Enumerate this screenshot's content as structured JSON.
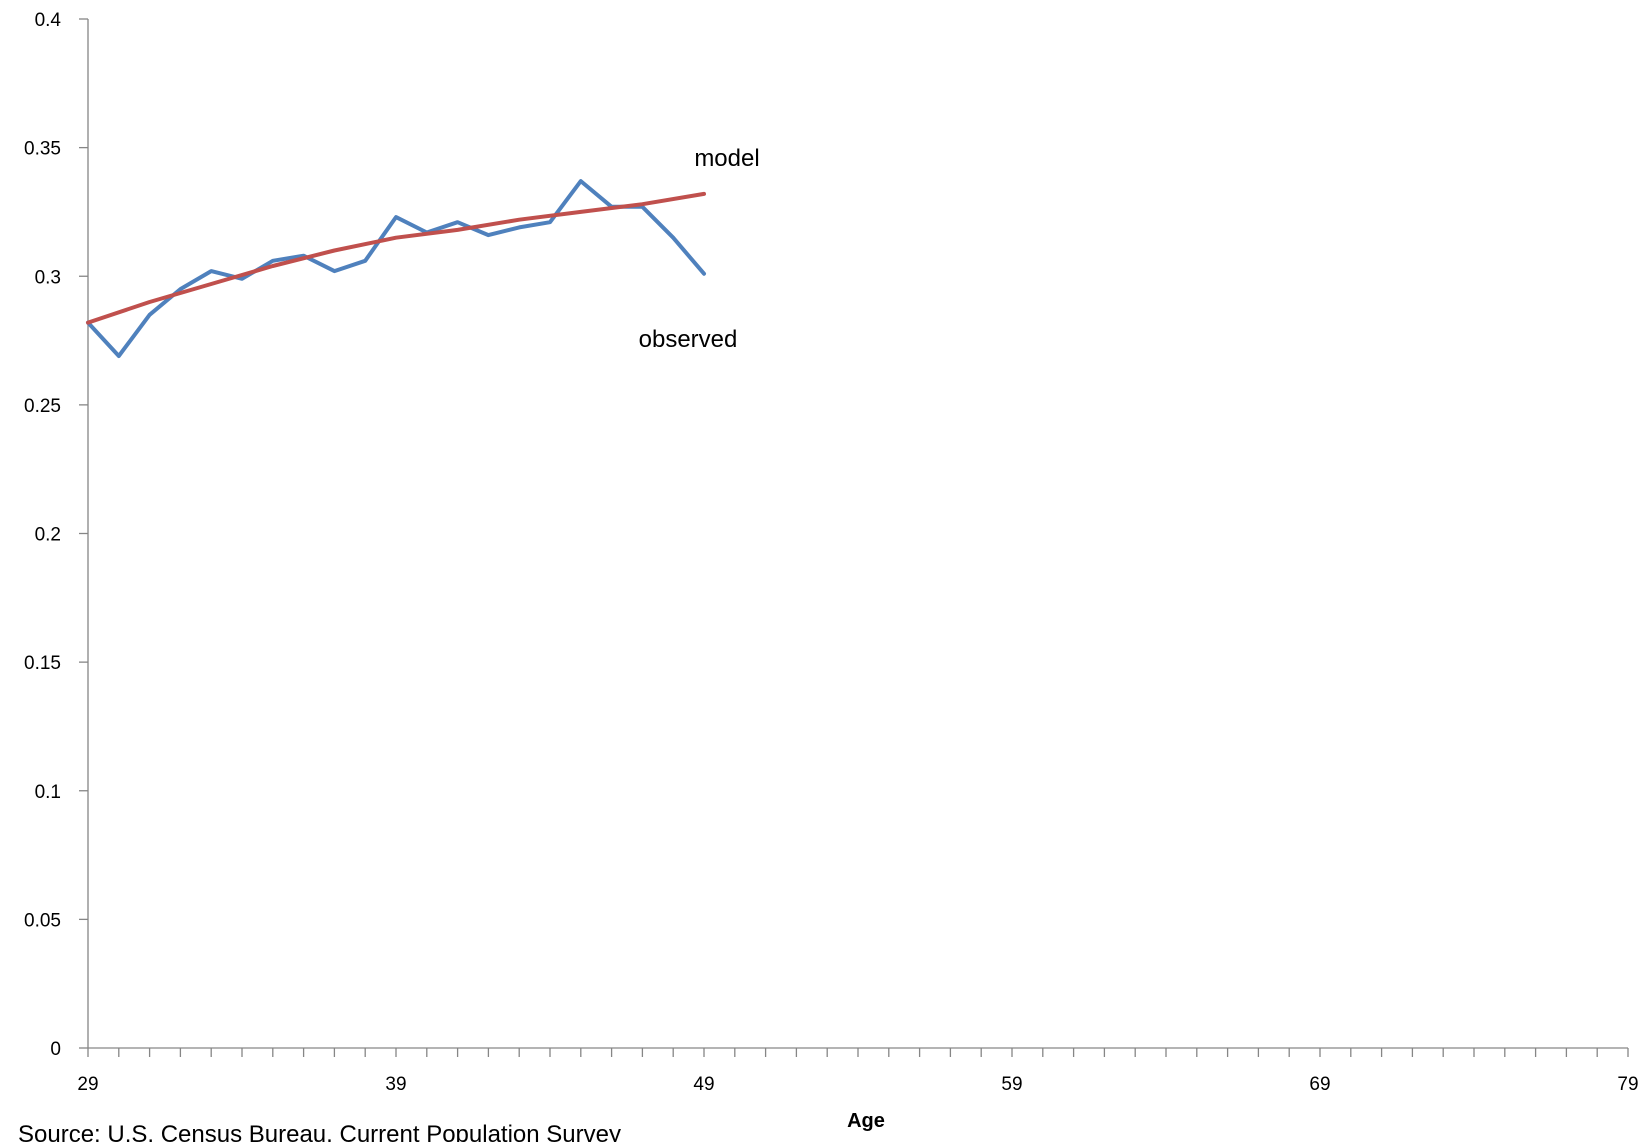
{
  "chart_data": {
    "type": "line",
    "xlabel": "Age",
    "xlim": [
      29,
      79
    ],
    "ylim": [
      0,
      0.4
    ],
    "x_tick_values": [
      29,
      39,
      49,
      59,
      69,
      79
    ],
    "x_tick_labels": [
      "29",
      "39",
      "49",
      "59",
      "69",
      "79"
    ],
    "y_tick_values": [
      0,
      0.05,
      0.1,
      0.15,
      0.2,
      0.25,
      0.3,
      0.35,
      0.4
    ],
    "y_tick_labels": [
      "0",
      "0.05",
      "0.1",
      "0.15",
      "0.2",
      "0.25",
      "0.3",
      "0.35",
      "0.4"
    ],
    "grid": false,
    "legend": "none",
    "series": [
      {
        "name": "observed",
        "color": "#4F81BD",
        "x": [
          29,
          30,
          31,
          32,
          33,
          34,
          35,
          36,
          37,
          38,
          39,
          40,
          41,
          42,
          43,
          44,
          45,
          46,
          47,
          48,
          49
        ],
        "y": [
          0.282,
          0.269,
          0.285,
          0.295,
          0.302,
          0.299,
          0.306,
          0.308,
          0.302,
          0.306,
          0.323,
          0.317,
          0.321,
          0.316,
          0.319,
          0.321,
          0.337,
          0.327,
          0.327,
          0.315,
          0.301
        ]
      },
      {
        "name": "model",
        "color": "#C0504D",
        "x": [
          29,
          31,
          33,
          35,
          37,
          39,
          41,
          43,
          45,
          47,
          49
        ],
        "y": [
          0.282,
          0.29,
          0.297,
          0.304,
          0.31,
          0.315,
          0.318,
          0.322,
          0.325,
          0.328,
          0.332
        ]
      }
    ],
    "annotations": [
      "model",
      "observed"
    ]
  },
  "source_note": "Source: U.S. Census Bureau, Current Population Survey"
}
